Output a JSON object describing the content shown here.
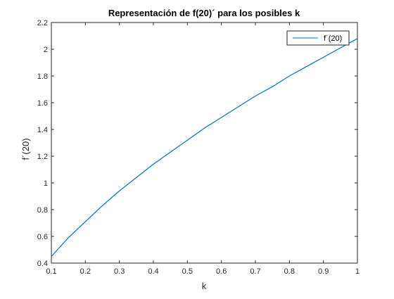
{
  "chart_data": {
    "type": "line",
    "title": "Representación de f(20)´ para los posibles k",
    "xlabel": "k",
    "ylabel": "f´(20)",
    "xlim": [
      0.1,
      1
    ],
    "ylim": [
      0.4,
      2.2
    ],
    "xticks": [
      0.1,
      0.2,
      0.3,
      0.4,
      0.5,
      0.6,
      0.7,
      0.8,
      0.9,
      1
    ],
    "yticks": [
      0.4,
      0.6,
      0.8,
      1,
      1.2,
      1.4,
      1.6,
      1.8,
      2,
      2.2
    ],
    "xtick_labels": [
      "0.1",
      "0.2",
      "0.3",
      "0.4",
      "0.5",
      "0.6",
      "0.7",
      "0.8",
      "0.9",
      "1"
    ],
    "ytick_labels": [
      "0.4",
      "0.6",
      "0.8",
      "1",
      "1.2",
      "1.4",
      "1.6",
      "1.8",
      "2",
      "2.2"
    ],
    "grid": false,
    "legend_position": "top-right",
    "series": [
      {
        "name": "f´(20)",
        "color": "#0072BD",
        "x": [
          0.1,
          0.15,
          0.2,
          0.25,
          0.3,
          0.35,
          0.4,
          0.45,
          0.5,
          0.55,
          0.6,
          0.65,
          0.7,
          0.75,
          0.8,
          0.85,
          0.9,
          0.95,
          1.0
        ],
        "y": [
          0.45,
          0.59,
          0.71,
          0.83,
          0.94,
          1.04,
          1.14,
          1.23,
          1.32,
          1.41,
          1.49,
          1.57,
          1.65,
          1.72,
          1.8,
          1.87,
          1.94,
          2.01,
          2.08
        ]
      }
    ]
  }
}
